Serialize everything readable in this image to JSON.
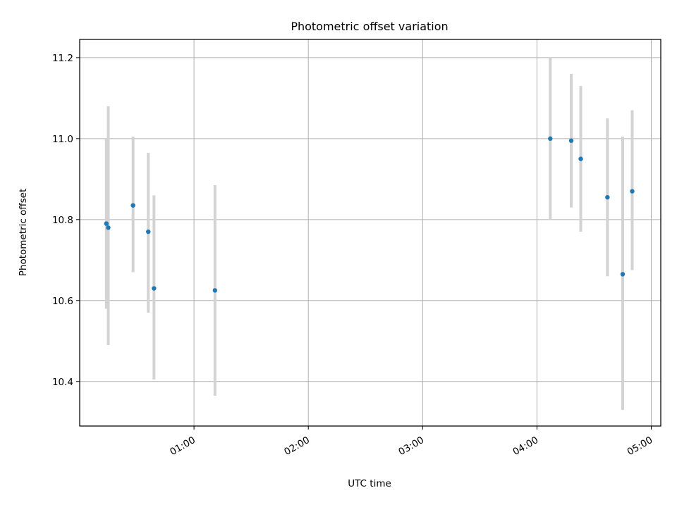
{
  "chart_data": {
    "type": "scatter",
    "title": "Photometric offset variation",
    "xlabel": "UTC time",
    "ylabel": "Photometric offset",
    "x_axis_format": "time",
    "xlim": [
      "00:00",
      "05:05"
    ],
    "ylim": [
      10.29,
      11.245
    ],
    "x_ticks": [
      "01:00",
      "02:00",
      "03:00",
      "04:00",
      "05:00"
    ],
    "y_ticks": [
      10.4,
      10.6,
      10.8,
      11.0,
      11.2
    ],
    "y_tick_labels": [
      "10.4",
      "10.6",
      "10.8",
      "11.0",
      "11.2"
    ],
    "grid": true,
    "point_color": "#1f77b4",
    "errorbar_color": "#d3d3d3",
    "points": [
      {
        "time": "00:14",
        "y": 10.79,
        "ymin": 10.58,
        "ymax": 11.0
      },
      {
        "time": "00:15",
        "y": 10.78,
        "ymin": 10.49,
        "ymax": 11.08
      },
      {
        "time": "00:28",
        "y": 10.835,
        "ymin": 10.67,
        "ymax": 11.005
      },
      {
        "time": "00:36",
        "y": 10.77,
        "ymin": 10.57,
        "ymax": 10.965
      },
      {
        "time": "00:39",
        "y": 10.63,
        "ymin": 10.405,
        "ymax": 10.86
      },
      {
        "time": "01:11",
        "y": 10.625,
        "ymin": 10.365,
        "ymax": 10.885
      },
      {
        "time": "04:07",
        "y": 11.0,
        "ymin": 10.8,
        "ymax": 11.2
      },
      {
        "time": "04:18",
        "y": 10.995,
        "ymin": 10.83,
        "ymax": 11.16
      },
      {
        "time": "04:23",
        "y": 10.95,
        "ymin": 10.77,
        "ymax": 11.13
      },
      {
        "time": "04:37",
        "y": 10.855,
        "ymin": 10.66,
        "ymax": 11.05
      },
      {
        "time": "04:45",
        "y": 10.665,
        "ymin": 10.33,
        "ymax": 11.005
      },
      {
        "time": "04:50",
        "y": 10.87,
        "ymin": 10.675,
        "ymax": 11.07
      }
    ]
  }
}
